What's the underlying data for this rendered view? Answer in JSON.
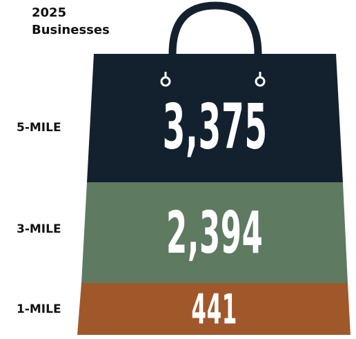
{
  "title": {
    "line1": "2025",
    "line2": "Businesses"
  },
  "tiers": [
    {
      "label": "5-MILE",
      "value": "3,375"
    },
    {
      "label": "3-MILE",
      "value": "2,394"
    },
    {
      "label": "1-MILE",
      "value": "441"
    }
  ],
  "colors": {
    "tier_5mile": "#13212f",
    "tier_3mile": "#5e7b62",
    "tier_1mile": "#a0582b",
    "handle": "#13212f",
    "number_text": "#ffffff"
  },
  "icons": {
    "bag": "shopping-bag-icon"
  }
}
